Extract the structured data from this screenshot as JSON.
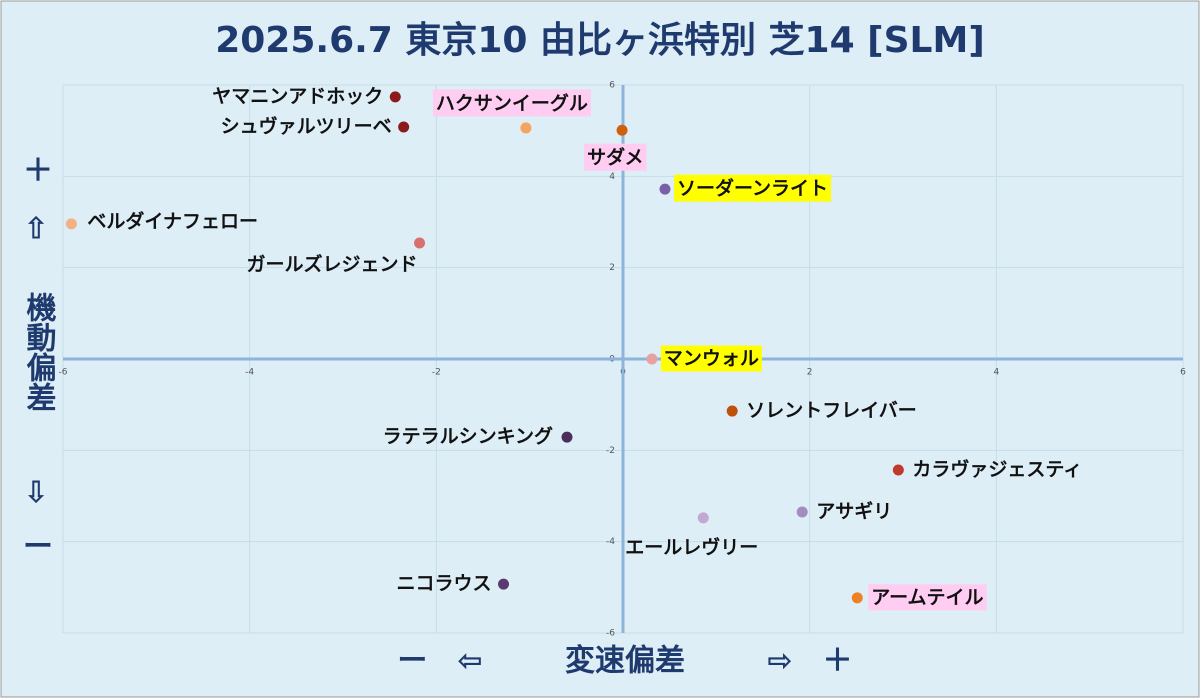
{
  "chart_data": {
    "type": "scatter",
    "title": "2025.6.7 東京10 由比ヶ浜特別 芝14 [SLM]",
    "xlabel": "変速偏差",
    "x_minus": "ー　⇦",
    "x_plus": "⇨　＋",
    "ylabel": "機動偏差",
    "y_plus": "＋",
    "y_up": "⇧",
    "y_down": "⇩",
    "y_minus": "ー",
    "xlim": [
      -6,
      6
    ],
    "ylim": [
      -6,
      6
    ],
    "xticks": [
      -6,
      -4,
      -2,
      0,
      2,
      4,
      6
    ],
    "yticks": [
      -6,
      -4,
      -2,
      0,
      2,
      4,
      6
    ],
    "grid": true,
    "series": [
      {
        "name": "ヤマニンアドホック",
        "color": "#8b1a1a",
        "x": [
          -2.44
        ],
        "values": [
          5.74
        ]
      },
      {
        "name": "シュヴァルツリーベ",
        "color": "#8b1a1a",
        "x": [
          -2.35
        ],
        "values": [
          5.08
        ]
      },
      {
        "name": "ハクサンイーグル",
        "color": "#f4a460",
        "highlight": "#ffccf2",
        "x": [
          -1.04
        ],
        "values": [
          5.06
        ]
      },
      {
        "name": "サダメ",
        "color": "#d2600a",
        "highlight": "#ffccf2",
        "x": [
          -0.01
        ],
        "values": [
          5.01
        ]
      },
      {
        "name": "ソーダーンライト",
        "color": "#7b5ea7",
        "highlight": "#ffff00",
        "x": [
          0.45
        ],
        "values": [
          3.72
        ]
      },
      {
        "name": "ベルダイナフェロー",
        "color": "#f4b183",
        "x": [
          -5.91
        ],
        "values": [
          2.96
        ]
      },
      {
        "name": "ガールズレジェンド",
        "color": "#d97070",
        "x": [
          -2.18
        ],
        "values": [
          2.54
        ]
      },
      {
        "name": "マンウォル",
        "color": "#e8a0a0",
        "highlight": "#ffff00",
        "x": [
          0.31
        ],
        "values": [
          0
        ]
      },
      {
        "name": "ソレントフレイバー",
        "color": "#c0500a",
        "x": [
          1.17
        ],
        "values": [
          -1.14
        ]
      },
      {
        "name": "ラテラルシンキング",
        "color": "#4b2d5a",
        "x": [
          -0.6
        ],
        "values": [
          -1.71
        ]
      },
      {
        "name": "カラヴァジェスティ",
        "color": "#c0392b",
        "x": [
          2.95
        ],
        "values": [
          -2.43
        ]
      },
      {
        "name": "アサギリ",
        "color": "#a58cc0",
        "x": [
          1.92
        ],
        "values": [
          -3.35
        ]
      },
      {
        "name": "エールレヴリー",
        "color": "#c3a8d0",
        "x": [
          0.86
        ],
        "values": [
          -3.48
        ]
      },
      {
        "name": "ニコラウス",
        "color": "#5a3a70",
        "x": [
          -1.28
        ],
        "values": [
          -4.93
        ]
      },
      {
        "name": "アームテイル",
        "color": "#f08020",
        "highlight": "#ffccf2",
        "x": [
          2.51
        ],
        "values": [
          -5.23
        ]
      }
    ]
  }
}
